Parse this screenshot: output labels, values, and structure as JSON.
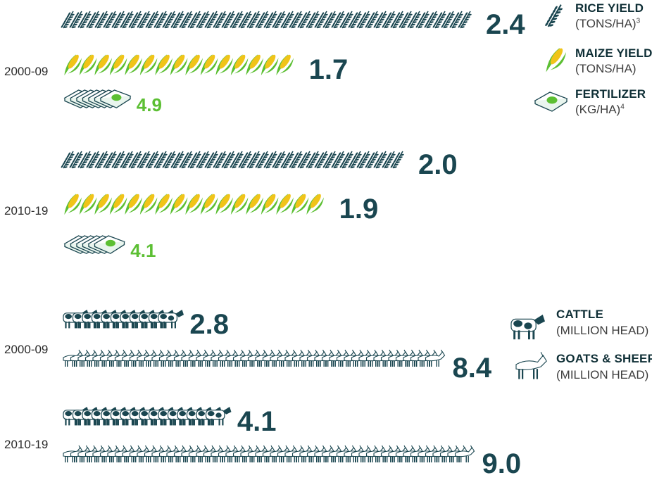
{
  "colors": {
    "dark": "#1a4650",
    "rice": "#1a4650",
    "maize_leaf": "#5cbf33",
    "maize_kernel": "#f0c419",
    "fertilizer_value": "#5cbf33",
    "fertilizer_bag": "#ffffff"
  },
  "legend": {
    "rice": {
      "title": "RICE YIELD",
      "unit": "(TONS/HA)",
      "note": "3",
      "icon": "rice-icon"
    },
    "maize": {
      "title": "MAIZE YIELD",
      "unit": "(TONS/HA)",
      "icon": "maize-icon"
    },
    "fertilizer": {
      "title": "FERTILIZER",
      "unit": "(KG/HA)",
      "note": "4",
      "icon": "fertilizer-bag-icon"
    },
    "cattle": {
      "title": "CATTLE",
      "unit": "(MILLION HEAD)",
      "icon": "cow-icon"
    },
    "goats": {
      "title": "GOATS & SHEEP",
      "unit": "(MILLION HEAD)",
      "icon": "goat-icon"
    }
  },
  "chart_data": [
    {
      "type": "bar",
      "categories": [
        "2000-09",
        "2010-19"
      ],
      "series": [
        {
          "name": "RICE YIELD",
          "values": [
            2.4,
            2.0
          ],
          "labels": [
            "2.4",
            "2.0"
          ]
        },
        {
          "name": "MAIZE YIELD",
          "values": [
            1.7,
            1.9
          ],
          "labels": [
            "1.7",
            "1.9"
          ]
        },
        {
          "name": "FERTILIZER",
          "values": [
            4.9,
            4.1
          ],
          "labels": [
            "4.9",
            "4.1"
          ]
        }
      ]
    },
    {
      "type": "bar",
      "categories": [
        "2000-09",
        "2010-19"
      ],
      "series": [
        {
          "name": "CATTLE",
          "values": [
            2.8,
            4.1
          ],
          "labels": [
            "2.8",
            "4.1"
          ]
        },
        {
          "name": "GOATS & SHEEP",
          "values": [
            8.4,
            9.0
          ],
          "labels": [
            "8.4",
            "9.0"
          ]
        }
      ]
    }
  ]
}
